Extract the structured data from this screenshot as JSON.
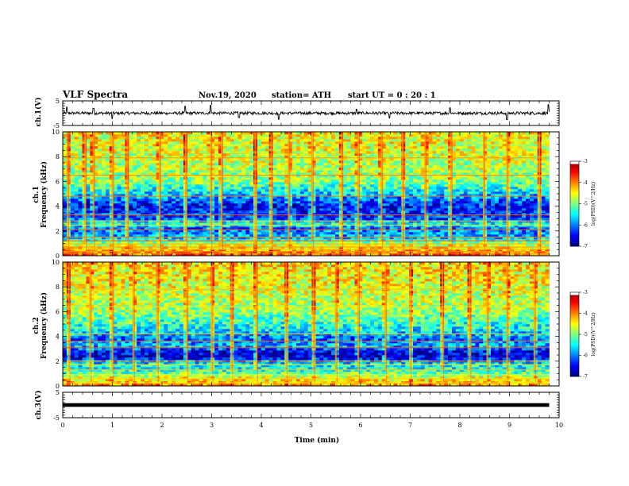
{
  "header": {
    "title": "VLF Spectra",
    "date": "Nov.19, 2020",
    "station": "station= ATH",
    "start": "start  UT =   0  : 20 : 1"
  },
  "chart_data": [
    {
      "type": "line",
      "id": "ch1-waveform",
      "ylabel": "ch.1(V)",
      "ylim": [
        -5,
        5
      ],
      "yticks": [
        -5,
        5
      ],
      "xlim": [
        0,
        10
      ],
      "baseline": 0,
      "noise_amplitude": 0.6,
      "spikes": [
        {
          "x": 0.08,
          "y": 2.5
        },
        {
          "x": 0.62,
          "y": 2.0
        },
        {
          "x": 1.0,
          "y": -2.2
        },
        {
          "x": 2.47,
          "y": 2.8
        },
        {
          "x": 2.98,
          "y": 3.2
        },
        {
          "x": 3.55,
          "y": -1.8
        },
        {
          "x": 4.35,
          "y": -2.5
        },
        {
          "x": 5.92,
          "y": 1.6
        },
        {
          "x": 6.58,
          "y": -2.0
        },
        {
          "x": 7.8,
          "y": 2.2
        },
        {
          "x": 8.95,
          "y": -2.6
        },
        {
          "x": 9.78,
          "y": 3.5
        }
      ]
    },
    {
      "type": "heatmap",
      "id": "ch1-spectrogram",
      "ylabel": "ch.1\nFrequency  (kHz)",
      "ylim": [
        0,
        10
      ],
      "yticks": [
        0,
        2,
        4,
        6,
        8,
        10
      ],
      "xlim": [
        0,
        10
      ],
      "data_xmax": 9.8,
      "profile": [
        {
          "f": 0.0,
          "v": 0.78
        },
        {
          "f": 0.5,
          "v": 0.7
        },
        {
          "f": 1.0,
          "v": 0.55
        },
        {
          "f": 1.5,
          "v": 0.3
        },
        {
          "f": 2.2,
          "v": 0.22
        },
        {
          "f": 2.6,
          "v": 0.38
        },
        {
          "f": 3.0,
          "v": 0.2
        },
        {
          "f": 4.0,
          "v": 0.12
        },
        {
          "f": 5.0,
          "v": 0.32
        },
        {
          "f": 6.0,
          "v": 0.5
        },
        {
          "f": 8.0,
          "v": 0.58
        },
        {
          "f": 10.0,
          "v": 0.62
        }
      ],
      "lines_khz": [
        0.2,
        0.35,
        0.5,
        0.7,
        0.95,
        1.2,
        1.5,
        2.1,
        2.45,
        2.8,
        3.3,
        4.8,
        6.5,
        7.9
      ],
      "bursts_min": [
        0.1,
        0.45,
        0.62,
        1.0,
        1.3,
        1.95,
        2.48,
        2.98,
        3.2,
        3.88,
        4.2,
        4.55,
        5.02,
        5.62,
        5.95,
        6.42,
        6.85,
        7.3,
        7.82,
        8.48,
        8.95,
        9.6
      ]
    },
    {
      "type": "heatmap",
      "id": "ch2-spectrogram",
      "ylabel": "ch.2\nFrequency  (kHz)",
      "ylim": [
        0,
        10
      ],
      "yticks": [
        0,
        2,
        4,
        6,
        8,
        10
      ],
      "xlim": [
        0,
        10
      ],
      "data_xmax": 9.8,
      "profile": [
        {
          "f": 0.0,
          "v": 0.72
        },
        {
          "f": 0.6,
          "v": 0.62
        },
        {
          "f": 1.2,
          "v": 0.42
        },
        {
          "f": 1.8,
          "v": 0.35
        },
        {
          "f": 2.3,
          "v": 0.08
        },
        {
          "f": 2.8,
          "v": 0.1
        },
        {
          "f": 3.2,
          "v": 0.3
        },
        {
          "f": 3.8,
          "v": 0.22
        },
        {
          "f": 4.5,
          "v": 0.35
        },
        {
          "f": 6.0,
          "v": 0.52
        },
        {
          "f": 8.0,
          "v": 0.6
        },
        {
          "f": 10.0,
          "v": 0.64
        }
      ],
      "lines_khz": [
        0.25,
        0.6,
        0.9,
        1.3,
        1.7,
        2.0,
        3.1,
        3.6,
        4.2,
        6.4,
        7.8
      ],
      "bursts_min": [
        0.12,
        0.55,
        1.0,
        1.42,
        1.9,
        2.5,
        3.0,
        3.4,
        3.9,
        4.5,
        5.05,
        5.5,
        5.95,
        6.5,
        7.0,
        7.65,
        8.2,
        8.55,
        8.95,
        9.5
      ]
    },
    {
      "type": "line",
      "id": "ch3-waveform",
      "ylabel": "ch.3(V)",
      "ylim": [
        -5,
        5
      ],
      "yticks": [
        -5,
        5
      ],
      "xlim": [
        0,
        10
      ],
      "baseline": 0,
      "noise_amplitude": 0.4,
      "data_xmax": 9.8
    }
  ],
  "colorbars": [
    {
      "label": "log(PSD)(V^2/Hz)",
      "ticks": [
        "-3",
        "-4",
        "-5",
        "-6",
        "-7"
      ]
    },
    {
      "label": "log(PSD)(V^2/Hz)",
      "ticks": [
        "-3",
        "-4",
        "-5",
        "-6",
        "-7"
      ]
    }
  ],
  "x_axis": {
    "label": "Time  (min)",
    "ticks": [
      0,
      1,
      2,
      3,
      4,
      5,
      6,
      7,
      8,
      9,
      10
    ]
  }
}
